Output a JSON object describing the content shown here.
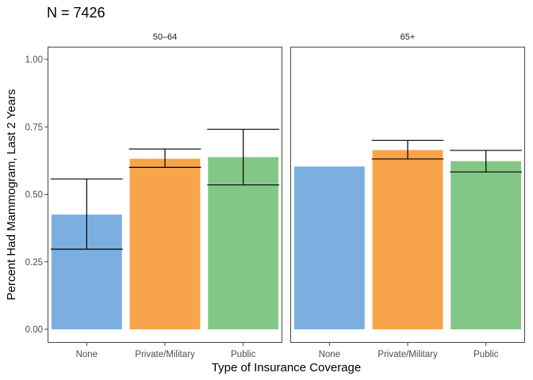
{
  "chart_data": {
    "type": "bar",
    "title": "N = 7426",
    "xlabel": "Type of Insurance Coverage",
    "ylabel": "Percent Had Mammogram, Last 2 Years",
    "ylim": [
      0,
      1.05
    ],
    "yticks": [
      "0.00",
      "0.25",
      "0.50",
      "0.75",
      "1.00"
    ],
    "categories": [
      "None",
      "Private/Military",
      "Public"
    ],
    "colors": [
      "#7aafe0",
      "#f7a44a",
      "#82c785"
    ],
    "grid": false,
    "legend": "none",
    "facets": [
      {
        "label": "50–64",
        "values": [
          0.425,
          0.632,
          0.638
        ],
        "error_low": [
          0.297,
          0.6,
          0.535
        ],
        "error_high": [
          0.557,
          0.668,
          0.741
        ]
      },
      {
        "label": "65+",
        "values": [
          0.603,
          0.664,
          0.623
        ],
        "error_low": [
          null,
          0.631,
          0.583
        ],
        "error_high": [
          null,
          0.7,
          0.663
        ]
      }
    ]
  }
}
